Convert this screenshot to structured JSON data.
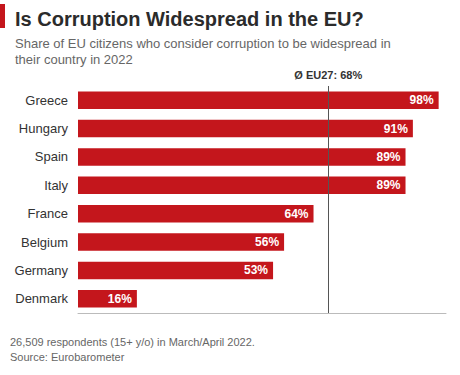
{
  "chart_data": {
    "type": "bar",
    "title": "Is Corruption Widespread in the EU?",
    "subtitle": "Share of EU citizens who consider corruption to be widespread in their country in 2022",
    "categories": [
      "Greece",
      "Hungary",
      "Spain",
      "Italy",
      "France",
      "Belgium",
      "Germany",
      "Denmark"
    ],
    "values": [
      98,
      91,
      89,
      89,
      64,
      56,
      53,
      16
    ],
    "value_labels": [
      "98%",
      "91%",
      "89%",
      "89%",
      "64%",
      "56%",
      "53%",
      "16%"
    ],
    "color": "#c4161c",
    "orientation": "horizontal",
    "data_labels": true,
    "tick_labels": "y",
    "grid": false,
    "xlim": [
      0,
      100
    ],
    "annotations": [
      {
        "text": "Ø EU27: 68%",
        "x": 68
      }
    ],
    "notes": [
      "26,509 respondents (15+ y/o) in March/April 2022.",
      "Source: Eurobarometer"
    ]
  }
}
